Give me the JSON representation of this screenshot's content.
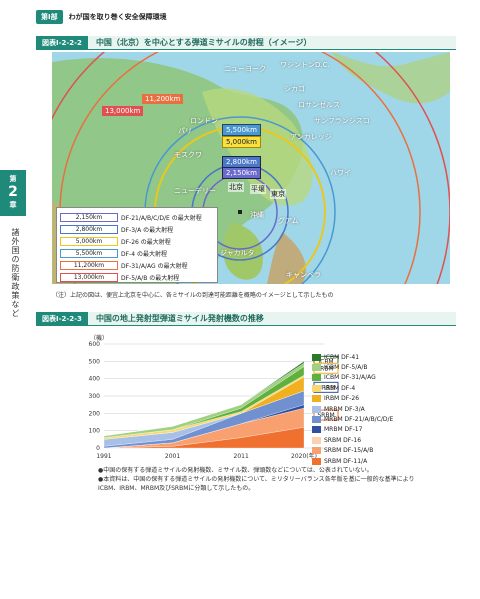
{
  "header": {
    "part": "第Ⅰ部",
    "text": "わが国を取り巻く安全保障環境"
  },
  "sidetab": {
    "chapter": "第",
    "num": "2",
    "chap": "章",
    "vertical": "諸外国の防衛政策など"
  },
  "fig1": {
    "label": "図表Ⅰ-2-2-2",
    "title": "中国（北京）を中心とする弾道ミサイルの射程（イメージ）"
  },
  "ranges": [
    {
      "label": "2,150km",
      "color": "#6a6acd",
      "desc": "DF-21/A/B/C/D/E の最大射程"
    },
    {
      "label": "2,800km",
      "color": "#4a78c8",
      "desc": "DF-3/A の最大射程"
    },
    {
      "label": "5,000km",
      "color": "#e8c820",
      "desc": "DF-26 の最大射程"
    },
    {
      "label": "5,500km",
      "color": "#4a98d0",
      "desc": "DF-4 の最大射程"
    },
    {
      "label": "11,200km",
      "color": "#e87040",
      "desc": "DF-31/A/AG の最大射程"
    },
    {
      "label": "13,000km",
      "color": "#e05050",
      "desc": "DF-5/A/B の最大射程"
    }
  ],
  "cities": [
    "ニューヨーク",
    "ワシントンD.C.",
    "シカゴ",
    "ロサンゼルス",
    "サンフランシスコ",
    "アンカレッジ",
    "ハワイ",
    "グアム",
    "沖縄",
    "東京",
    "平壌",
    "北京",
    "ロンドン",
    "パリ",
    "モスクワ",
    "ニューデリー",
    "ジャカルタ",
    "キャンベラ"
  ],
  "fig1_note": "（注）上記の図は、便宜上北京を中心に、各ミサイルの到達可能距離を概略のイメージとして示したもの",
  "fig2": {
    "label": "図表Ⅰ-2-2-3",
    "title": "中国の地上発射型弾道ミサイル発射機数の推移"
  },
  "chart_data": {
    "type": "area",
    "x": [
      "1991",
      "2001",
      "2011",
      "2020"
    ],
    "x_suffix": "(年)",
    "y_unit": "（機）",
    "ylim": [
      0,
      600
    ],
    "yticks": [
      0,
      100,
      200,
      300,
      400,
      500,
      600
    ],
    "group_labels": [
      "ICBM",
      "IRBM",
      "MRBM",
      "SRBM"
    ],
    "series": [
      {
        "name": "SRBM DF-11/A",
        "color": "#f07030",
        "values": [
          0,
          10,
          60,
          120
        ]
      },
      {
        "name": "SRBM DF-15/A/B",
        "color": "#f8a070",
        "values": [
          0,
          20,
          80,
          110
        ]
      },
      {
        "name": "SRBM DF-16",
        "color": "#fcd0b0",
        "values": [
          0,
          0,
          0,
          0
        ]
      },
      {
        "name": "MRBM DF-17",
        "color": "#3050a0",
        "values": [
          0,
          0,
          0,
          20
        ]
      },
      {
        "name": "MRBM DF-21/A/B/C/D/E",
        "color": "#7090d0",
        "values": [
          10,
          20,
          60,
          80
        ]
      },
      {
        "name": "MRBM DF-3/A",
        "color": "#a8c0e8",
        "values": [
          40,
          40,
          0,
          0
        ]
      },
      {
        "name": "IRBM DF-26",
        "color": "#f0b020",
        "values": [
          0,
          0,
          0,
          80
        ]
      },
      {
        "name": "IRBM DF-4",
        "color": "#f8d870",
        "values": [
          10,
          15,
          10,
          10
        ]
      },
      {
        "name": "ICBM DF-31/A/AG",
        "color": "#60b040",
        "values": [
          0,
          0,
          20,
          50
        ]
      },
      {
        "name": "ICBM DF-5/A/B",
        "color": "#a0d080",
        "values": [
          10,
          20,
          20,
          20
        ]
      },
      {
        "name": "ICBM DF-41",
        "color": "#2a7a2a",
        "values": [
          0,
          0,
          0,
          10
        ]
      }
    ]
  },
  "footnotes": [
    "●中国の保有する弾道ミサイルの発射機数、ミサイル数、弾頭数などについては、公表されていない。",
    "●本資料は、中国の保有する弾道ミサイルの発射機数について、ミリタリーバランス各年版を基に一般的な基準によりICBM、IRBM、MRBM及びSRBMに分類して示したもの。"
  ]
}
